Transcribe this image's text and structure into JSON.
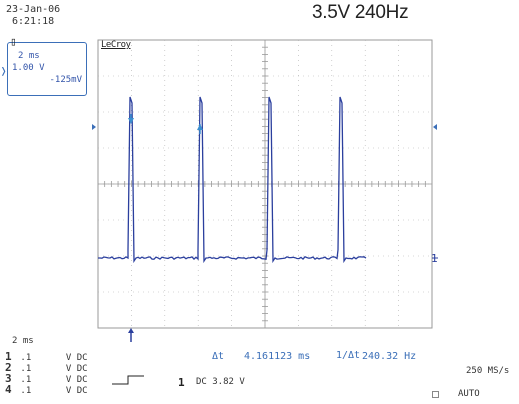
{
  "header": {
    "date": "23-Jan-06",
    "time": "6:21:18",
    "title": "3.5V 240Hz"
  },
  "trace_box": {
    "timebase": "2 ms",
    "volts_per_div": "1.00 V",
    "offset": "-125mV"
  },
  "logo": "LeCroy",
  "timebase_label": "2 ms",
  "channels": [
    {
      "num": "1",
      "scale": ".1",
      "unit": "V",
      "coupling": "DC"
    },
    {
      "num": "2",
      "scale": ".1",
      "unit": "V",
      "coupling": "DC"
    },
    {
      "num": "3",
      "scale": ".1",
      "unit": "V",
      "coupling": "DC"
    },
    {
      "num": "4",
      "scale": ".1",
      "unit": "V",
      "coupling": "DC"
    }
  ],
  "measurements": {
    "delta_t_label": "Δt",
    "delta_t_value": "4.161123 ms",
    "freq_label": "1/Δt",
    "freq_value": "240.32 Hz"
  },
  "trigger": {
    "channel": "1",
    "info": "DC 3.82 V"
  },
  "sample_rate": "250 MS/s",
  "mode": "AUTO",
  "ground_marker": "1",
  "colors": {
    "trace": "#2b3f9e",
    "cursor": "#3b8fd0",
    "grid": "#9a9a9a"
  }
}
